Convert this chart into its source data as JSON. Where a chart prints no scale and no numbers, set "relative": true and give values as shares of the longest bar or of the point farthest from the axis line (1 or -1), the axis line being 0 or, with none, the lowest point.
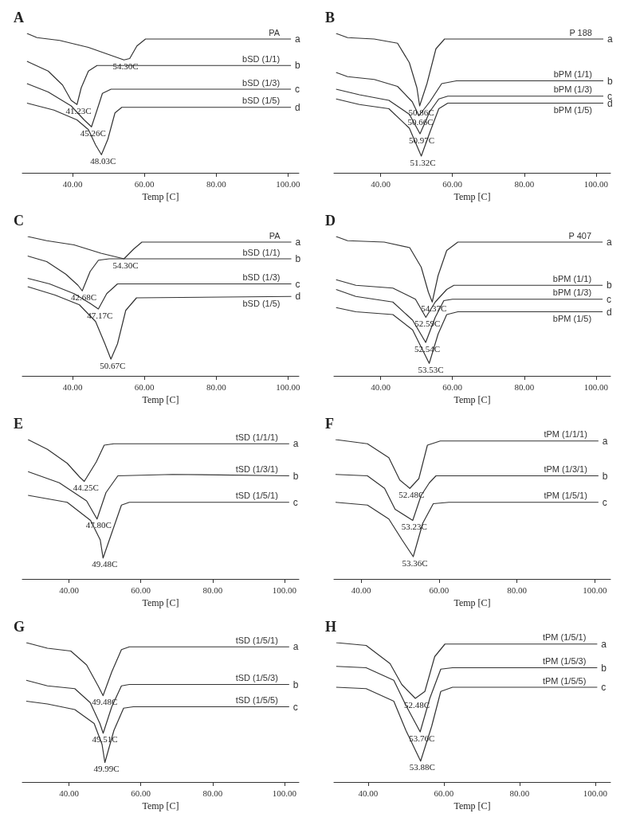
{
  "chart_data": [
    {
      "type": "line",
      "title": "A",
      "xlabel": "Temp [C]",
      "relative": true,
      "xlim": [
        26,
        103
      ],
      "xticks": [
        {
          "value": 40,
          "label": "40.00"
        },
        {
          "value": 60,
          "label": "60.00"
        },
        {
          "value": 80,
          "label": "80.00"
        },
        {
          "value": 100,
          "label": "100.00"
        }
      ],
      "series": [
        {
          "name": "PA",
          "color": "#333333",
          "x": [
            27.3,
            30.1,
            36.4,
            44.4,
            49.9,
            54.3,
            55.9,
            57.9,
            60.3,
            100.8
          ],
          "values": [
            1.0,
            0.97,
            0.95,
            0.9,
            0.85,
            0.81,
            0.82,
            0.91,
            0.96,
            0.96
          ]
        },
        {
          "name": "bSD (1/1)",
          "color": "#333333",
          "x": [
            27.3,
            33.2,
            37.2,
            39.6,
            41.23,
            42.4,
            44.4,
            46.8,
            100.8
          ],
          "values": [
            0.8,
            0.73,
            0.63,
            0.52,
            0.49,
            0.61,
            0.73,
            0.77,
            0.77
          ]
        },
        {
          "name": "bSD (1/3)",
          "color": "#333333",
          "x": [
            27.3,
            33.2,
            39.6,
            43.2,
            45.26,
            46.8,
            48.3,
            50.7,
            100.8
          ],
          "values": [
            0.64,
            0.58,
            0.48,
            0.38,
            0.33,
            0.45,
            0.57,
            0.6,
            0.6
          ]
        },
        {
          "name": "bSD (1/5)",
          "color": "#333333",
          "x": [
            27.3,
            34.8,
            41.2,
            44.4,
            46.4,
            48.03,
            49.8,
            51.8,
            53.7,
            100.8
          ],
          "values": [
            0.5,
            0.45,
            0.38,
            0.31,
            0.2,
            0.13,
            0.24,
            0.43,
            0.47,
            0.47
          ]
        }
      ],
      "annotations": [
        {
          "text": "54.30C",
          "x": 54.3,
          "y": 0.81
        },
        {
          "text": "41.23C",
          "x": 41.23,
          "y": 0.49
        },
        {
          "text": "45.26C",
          "x": 45.26,
          "y": 0.33
        },
        {
          "text": "48.03C",
          "x": 48.03,
          "y": 0.13
        },
        {
          "text": "a",
          "x": 100.8,
          "y": 0.96
        },
        {
          "text": "b",
          "x": 100.8,
          "y": 0.77
        },
        {
          "text": "c",
          "x": 100.8,
          "y": 0.6
        },
        {
          "text": "d",
          "x": 100.8,
          "y": 0.47
        }
      ]
    },
    {
      "type": "line",
      "title": "B",
      "xlabel": "Temp [C]",
      "relative": true,
      "xlim": [
        27,
        104
      ],
      "xticks": [
        {
          "value": 40,
          "label": "40.00"
        },
        {
          "value": 60,
          "label": "60.00"
        },
        {
          "value": 80,
          "label": "80.00"
        },
        {
          "value": 100,
          "label": "100.00"
        }
      ],
      "series": [
        {
          "name": "P 188",
          "color": "#333333",
          "x": [
            27.6,
            30.8,
            38.2,
            44.7,
            48.0,
            50.1,
            50.86,
            52.9,
            55.4,
            57.8,
            102.0
          ],
          "values": [
            1.0,
            0.97,
            0.96,
            0.93,
            0.79,
            0.61,
            0.48,
            0.64,
            0.89,
            0.96,
            0.96
          ]
        },
        {
          "name": "bPM (1/1)",
          "color": "#333333",
          "x": [
            27.6,
            30.8,
            38.2,
            44.7,
            48.8,
            50.66,
            53.7,
            57.0,
            61.1,
            102.0
          ],
          "values": [
            0.72,
            0.69,
            0.67,
            0.62,
            0.51,
            0.41,
            0.51,
            0.64,
            0.66,
            0.66
          ]
        },
        {
          "name": "bPM (1/3)",
          "color": "#333333",
          "x": [
            27.6,
            34.1,
            42.3,
            48.0,
            50.97,
            53.7,
            56.2,
            58.7,
            102.0
          ],
          "values": [
            0.6,
            0.56,
            0.52,
            0.42,
            0.28,
            0.44,
            0.53,
            0.55,
            0.55
          ]
        },
        {
          "name": "bPM (1/5)",
          "color": "#333333",
          "x": [
            27.6,
            34.1,
            42.3,
            48.0,
            51.32,
            53.7,
            56.2,
            58.7,
            102.0
          ],
          "values": [
            0.53,
            0.49,
            0.46,
            0.32,
            0.12,
            0.29,
            0.46,
            0.5,
            0.5
          ]
        }
      ],
      "annotations": [
        {
          "text": "50.86C",
          "x": 50.86,
          "y": 0.48
        },
        {
          "text": "50.66C",
          "x": 50.66,
          "y": 0.41
        },
        {
          "text": "50.97C",
          "x": 50.97,
          "y": 0.28
        },
        {
          "text": "51.32C",
          "x": 51.32,
          "y": 0.12
        },
        {
          "text": "a",
          "x": 102.0,
          "y": 0.96
        },
        {
          "text": "b",
          "x": 102.0,
          "y": 0.66
        },
        {
          "text": "c",
          "x": 102.0,
          "y": 0.55
        },
        {
          "text": "d",
          "x": 102.0,
          "y": 0.5
        }
      ]
    },
    {
      "type": "line",
      "title": "C",
      "xlabel": "Temp [C]",
      "relative": true,
      "xlim": [
        26,
        103
      ],
      "xticks": [
        {
          "value": 40,
          "label": "40.00"
        },
        {
          "value": 60,
          "label": "60.00"
        },
        {
          "value": 80,
          "label": "80.00"
        },
        {
          "value": 100,
          "label": "100.00"
        }
      ],
      "series": [
        {
          "name": "PA",
          "color": "#333333",
          "x": [
            27.5,
            32.8,
            40.4,
            47.9,
            54.3,
            57.0,
            59.3,
            100.9
          ],
          "values": [
            1.0,
            0.97,
            0.94,
            0.88,
            0.84,
            0.91,
            0.96,
            0.96
          ]
        },
        {
          "name": "bSD (1/1)",
          "color": "#333333",
          "x": [
            27.5,
            32.8,
            38.1,
            41.5,
            42.68,
            44.9,
            47.2,
            50.2,
            100.9
          ],
          "values": [
            0.86,
            0.82,
            0.73,
            0.65,
            0.61,
            0.75,
            0.83,
            0.84,
            0.84
          ]
        },
        {
          "name": "bSD (1/3)",
          "color": "#333333",
          "x": [
            27.5,
            33.6,
            40.4,
            44.9,
            47.17,
            49.5,
            52.5,
            100.9
          ],
          "values": [
            0.7,
            0.66,
            0.59,
            0.52,
            0.48,
            0.59,
            0.66,
            0.66
          ]
        },
        {
          "name": "bSD (1/5)",
          "color": "#333333",
          "x": [
            27.5,
            35.1,
            41.9,
            46.4,
            49.0,
            50.67,
            52.5,
            54.8,
            57.8,
            100.9
          ],
          "values": [
            0.64,
            0.58,
            0.51,
            0.39,
            0.23,
            0.12,
            0.23,
            0.47,
            0.56,
            0.57
          ]
        }
      ],
      "annotations": [
        {
          "text": "54.30C",
          "x": 54.3,
          "y": 0.84
        },
        {
          "text": "42.68C",
          "x": 42.68,
          "y": 0.61
        },
        {
          "text": "47.17C",
          "x": 47.17,
          "y": 0.48
        },
        {
          "text": "50.67C",
          "x": 50.67,
          "y": 0.12
        },
        {
          "text": "a",
          "x": 100.9,
          "y": 0.96
        },
        {
          "text": "b",
          "x": 100.9,
          "y": 0.84
        },
        {
          "text": "c",
          "x": 100.9,
          "y": 0.66
        },
        {
          "text": "d",
          "x": 100.9,
          "y": 0.57
        }
      ]
    },
    {
      "type": "line",
      "title": "D",
      "xlabel": "Temp [C]",
      "relative": true,
      "xlim": [
        27,
        104
      ],
      "xticks": [
        {
          "value": 40,
          "label": "40.00"
        },
        {
          "value": 60,
          "label": "60.00"
        },
        {
          "value": 80,
          "label": "80.00"
        },
        {
          "value": 100,
          "label": "100.00"
        }
      ],
      "series": [
        {
          "name": "P 407",
          "color": "#333333",
          "x": [
            27.6,
            30.8,
            41.0,
            48.1,
            51.3,
            53.3,
            54.37,
            56.0,
            58.4,
            61.5,
            101.8
          ],
          "values": [
            1.0,
            0.97,
            0.96,
            0.92,
            0.78,
            0.6,
            0.53,
            0.72,
            0.9,
            0.96,
            0.96
          ]
        },
        {
          "name": "bPM (1/1)",
          "color": "#333333",
          "x": [
            27.6,
            33.1,
            43.4,
            49.7,
            52.59,
            55.2,
            58.4,
            60.4,
            101.8
          ],
          "values": [
            0.69,
            0.65,
            0.63,
            0.55,
            0.42,
            0.53,
            0.62,
            0.65,
            0.65
          ]
        },
        {
          "name": "bPM (1/3)",
          "color": "#333333",
          "x": [
            27.6,
            33.1,
            43.4,
            48.9,
            52.54,
            55.2,
            57.6,
            60.0,
            101.8
          ],
          "values": [
            0.62,
            0.57,
            0.53,
            0.4,
            0.24,
            0.42,
            0.54,
            0.55,
            0.55
          ]
        },
        {
          "name": "bPM (1/5)",
          "color": "#333333",
          "x": [
            27.6,
            33.1,
            43.4,
            48.9,
            53.53,
            56.0,
            58.4,
            61.5,
            101.8
          ],
          "values": [
            0.49,
            0.46,
            0.44,
            0.33,
            0.09,
            0.3,
            0.44,
            0.46,
            0.46
          ]
        }
      ],
      "annotations": [
        {
          "text": "54.37C",
          "x": 54.37,
          "y": 0.53
        },
        {
          "text": "52.59C",
          "x": 52.59,
          "y": 0.42
        },
        {
          "text": "52.54C",
          "x": 52.54,
          "y": 0.24
        },
        {
          "text": "53.53C",
          "x": 53.53,
          "y": 0.09
        },
        {
          "text": "a",
          "x": 101.8,
          "y": 0.96
        },
        {
          "text": "b",
          "x": 101.8,
          "y": 0.65
        },
        {
          "text": "c",
          "x": 101.8,
          "y": 0.55
        },
        {
          "text": "d",
          "x": 101.8,
          "y": 0.46
        }
      ]
    },
    {
      "type": "line",
      "title": "E",
      "xlabel": "Temp [C]",
      "relative": true,
      "xlim": [
        27,
        104
      ],
      "xticks": [
        {
          "value": 40,
          "label": "40.00"
        },
        {
          "value": 60,
          "label": "60.00"
        },
        {
          "value": 80,
          "label": "80.00"
        },
        {
          "value": 100,
          "label": "100.00"
        }
      ],
      "series": [
        {
          "name": "tSD (1/1/1)",
          "color": "#333333",
          "x": [
            28.6,
            34.0,
            39.5,
            43.0,
            44.25,
            47.6,
            49.8,
            52.5,
            101.3
          ],
          "values": [
            1.0,
            0.93,
            0.83,
            0.73,
            0.7,
            0.84,
            0.96,
            0.97,
            0.97
          ]
        },
        {
          "name": "tSD (1/3/1)",
          "color": "#333333",
          "x": [
            28.6,
            37.3,
            44.9,
            47.8,
            50.3,
            53.6,
            68.8,
            101.3
          ],
          "values": [
            0.77,
            0.69,
            0.56,
            0.43,
            0.62,
            0.74,
            0.75,
            0.74
          ]
        },
        {
          "name": "tSD (1/5/1)",
          "color": "#333333",
          "x": [
            28.6,
            39.5,
            46.0,
            48.7,
            49.48,
            51.9,
            54.6,
            56.8,
            101.3
          ],
          "values": [
            0.6,
            0.55,
            0.42,
            0.28,
            0.15,
            0.33,
            0.53,
            0.55,
            0.55
          ]
        }
      ],
      "annotations": [
        {
          "text": "44.25C",
          "x": 44.25,
          "y": 0.7
        },
        {
          "text": "47.80C",
          "x": 47.8,
          "y": 0.43
        },
        {
          "text": "49.48C",
          "x": 49.48,
          "y": 0.15
        },
        {
          "text": "a",
          "x": 101.3,
          "y": 0.97
        },
        {
          "text": "b",
          "x": 101.3,
          "y": 0.74
        },
        {
          "text": "c",
          "x": 101.3,
          "y": 0.55
        }
      ]
    },
    {
      "type": "line",
      "title": "F",
      "xlabel": "Temp [C]",
      "relative": true,
      "xlim": [
        33,
        104
      ],
      "xticks": [
        {
          "value": 40,
          "label": "40.00"
        },
        {
          "value": 60,
          "label": "60.00"
        },
        {
          "value": 80,
          "label": "80.00"
        },
        {
          "value": 100,
          "label": "100.00"
        }
      ],
      "series": [
        {
          "name": "tPM (1/1/1)",
          "color": "#333333",
          "x": [
            33.4,
            41.6,
            47.1,
            49.9,
            52.48,
            54.8,
            57.0,
            60.3,
            100.9
          ],
          "values": [
            1.0,
            0.97,
            0.87,
            0.71,
            0.65,
            0.72,
            0.96,
            0.99,
            0.99
          ]
        },
        {
          "name": "tPM (1/3/1)",
          "color": "#333333",
          "x": [
            33.4,
            41.6,
            46.0,
            48.7,
            53.23,
            55.4,
            57.5,
            59.2,
            100.9
          ],
          "values": [
            0.75,
            0.74,
            0.65,
            0.5,
            0.42,
            0.6,
            0.69,
            0.74,
            0.74
          ]
        },
        {
          "name": "tPM (1/5/1)",
          "color": "#333333",
          "x": [
            33.4,
            41.6,
            47.1,
            50.5,
            53.36,
            55.8,
            58.5,
            62.5,
            100.9
          ],
          "values": [
            0.55,
            0.53,
            0.43,
            0.28,
            0.16,
            0.4,
            0.54,
            0.55,
            0.55
          ]
        }
      ],
      "annotations": [
        {
          "text": "52.48C",
          "x": 52.48,
          "y": 0.65
        },
        {
          "text": "53.23C",
          "x": 53.23,
          "y": 0.42
        },
        {
          "text": "53.36C",
          "x": 53.36,
          "y": 0.16
        },
        {
          "text": "a",
          "x": 100.9,
          "y": 0.99
        },
        {
          "text": "b",
          "x": 100.9,
          "y": 0.74
        },
        {
          "text": "c",
          "x": 100.9,
          "y": 0.55
        }
      ]
    },
    {
      "type": "line",
      "title": "G",
      "xlabel": "Temp [C]",
      "relative": true,
      "xlim": [
        27,
        104
      ],
      "xticks": [
        {
          "value": 40,
          "label": "40.00"
        },
        {
          "value": 60,
          "label": "60.00"
        },
        {
          "value": 80,
          "label": "80.00"
        },
        {
          "value": 100,
          "label": "100.00"
        }
      ],
      "series": [
        {
          "name": "tSD (1/5/1)",
          "color": "#333333",
          "x": [
            28.1,
            34.0,
            40.5,
            44.9,
            48.1,
            49.48,
            51.9,
            54.6,
            56.8,
            101.3
          ],
          "values": [
            1.0,
            0.96,
            0.94,
            0.84,
            0.69,
            0.62,
            0.79,
            0.95,
            0.97,
            0.97
          ]
        },
        {
          "name": "tSD (1/5/3)",
          "color": "#333333",
          "x": [
            28.1,
            34.0,
            41.6,
            45.9,
            48.6,
            49.51,
            51.9,
            54.6,
            56.8,
            101.3
          ],
          "values": [
            0.73,
            0.69,
            0.67,
            0.57,
            0.42,
            0.35,
            0.54,
            0.69,
            0.7,
            0.7
          ]
        },
        {
          "name": "tSD (1/5/5)",
          "color": "#333333",
          "x": [
            28.1,
            34.0,
            41.6,
            47.0,
            49.2,
            49.99,
            52.5,
            55.2,
            57.9,
            101.3
          ],
          "values": [
            0.58,
            0.56,
            0.52,
            0.42,
            0.27,
            0.14,
            0.37,
            0.53,
            0.54,
            0.54
          ]
        }
      ],
      "annotations": [
        {
          "text": "49.48C",
          "x": 49.48,
          "y": 0.62
        },
        {
          "text": "49.51C",
          "x": 49.51,
          "y": 0.35
        },
        {
          "text": "49.99C",
          "x": 49.99,
          "y": 0.14
        },
        {
          "text": "a",
          "x": 101.3,
          "y": 0.97
        },
        {
          "text": "b",
          "x": 101.3,
          "y": 0.7
        },
        {
          "text": "c",
          "x": 101.3,
          "y": 0.54
        }
      ]
    },
    {
      "type": "line",
      "title": "H",
      "xlabel": "Temp [C]",
      "relative": true,
      "xlim": [
        31,
        104
      ],
      "xticks": [
        {
          "value": 40,
          "label": "40.00"
        },
        {
          "value": 60,
          "label": "60.00"
        },
        {
          "value": 80,
          "label": "80.00"
        },
        {
          "value": 100,
          "label": "100.00"
        }
      ],
      "series": [
        {
          "name": "tPM (1/5/1)",
          "color": "#333333",
          "x": [
            31.6,
            39.5,
            45.8,
            48.9,
            52.48,
            55.0,
            57.6,
            60.3,
            100.5
          ],
          "values": [
            1.0,
            0.98,
            0.85,
            0.7,
            0.6,
            0.65,
            0.9,
            0.99,
            0.99
          ]
        },
        {
          "name": "tPM (1/5/3)",
          "color": "#333333",
          "x": [
            31.6,
            39.5,
            46.8,
            50.0,
            53.76,
            56.3,
            59.2,
            62.3,
            100.5
          ],
          "values": [
            0.83,
            0.82,
            0.73,
            0.55,
            0.36,
            0.6,
            0.81,
            0.82,
            0.82
          ]
        },
        {
          "name": "tPM (1/5/5)",
          "color": "#333333",
          "x": [
            31.6,
            39.5,
            46.8,
            50.0,
            53.88,
            56.8,
            59.2,
            62.3,
            100.5
          ],
          "values": [
            0.68,
            0.67,
            0.58,
            0.37,
            0.15,
            0.4,
            0.65,
            0.68,
            0.68
          ]
        }
      ],
      "annotations": [
        {
          "text": "52.48C",
          "x": 52.48,
          "y": 0.6
        },
        {
          "text": "53.76C",
          "x": 53.76,
          "y": 0.36
        },
        {
          "text": "53.88C",
          "x": 53.88,
          "y": 0.15
        },
        {
          "text": "a",
          "x": 100.5,
          "y": 0.99
        },
        {
          "text": "b",
          "x": 100.5,
          "y": 0.82
        },
        {
          "text": "c",
          "x": 100.5,
          "y": 0.68
        }
      ]
    }
  ]
}
